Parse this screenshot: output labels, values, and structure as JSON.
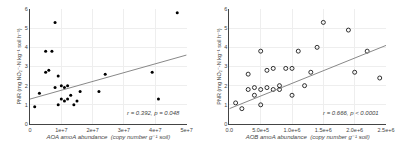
{
  "chart_data": [
    {
      "type": "scatter",
      "xlabel": "AOA amoA abundance  (copy number g⁻¹ soil)",
      "ylabel": "PNR (mg NO₂⁻-N kg⁻¹ soil h⁻¹)",
      "annotation": "r = 0.392, p = 0.048",
      "xlim": [
        0,
        50000000.0
      ],
      "ylim": [
        0,
        6
      ],
      "xticks": [
        0,
        {
          "value": 10000000.0,
          "label": "1e+7"
        },
        {
          "value": 20000000.0,
          "label": "2e+7"
        },
        {
          "value": 30000000.0,
          "label": "3e+7"
        },
        {
          "value": 40000000.0,
          "label": "4e+7"
        },
        {
          "value": 50000000.0,
          "label": "5e+7"
        }
      ],
      "yticks": [
        0,
        1,
        2,
        3,
        4,
        5,
        6
      ],
      "series": [
        {
          "type": "scatter",
          "color": "#000000",
          "marker": "filled",
          "x": [
            1500000.0,
            3000000.0,
            5000000.0,
            5000000.0,
            6000000.0,
            7000000.0,
            8000000.0,
            8000000.0,
            9000000.0,
            9000000.0,
            10000000.0,
            10000000.0,
            11000000.0,
            11000000.0,
            12000000.0,
            12000000.0,
            13000000.0,
            14000000.0,
            15000000.0,
            16000000.0,
            22000000.0,
            24000000.0,
            39000000.0,
            41000000.0,
            47000000.0
          ],
          "values": [
            0.9,
            1.6,
            2.7,
            3.8,
            2.8,
            3.8,
            5.3,
            1.9,
            2.5,
            1.0,
            2.0,
            1.3,
            1.9,
            1.2,
            2.0,
            1.3,
            1.5,
            1.0,
            1.2,
            1.7,
            1.7,
            2.6,
            2.7,
            1.3,
            5.8
          ]
        },
        {
          "type": "line",
          "color": "#888888",
          "x": [
            0,
            50000000.0
          ],
          "values": [
            1.3,
            3.6
          ]
        }
      ]
    },
    {
      "type": "scatter",
      "xlabel": "AOB amoA abundance  (copy number g⁻¹ soil)",
      "ylabel": "PNR (mg NO₂⁻-N kg⁻¹ soil h⁻¹)",
      "annotation": "r = 0.666, p < 0.0001",
      "xlim": [
        0,
        2500000.0
      ],
      "ylim": [
        0,
        6
      ],
      "xticks": [
        {
          "value": 0,
          "label": "0.0"
        },
        {
          "value": 500000.0,
          "label": "5.0e+5"
        },
        {
          "value": 1000000.0,
          "label": "1.0e+6"
        },
        {
          "value": 1500000.0,
          "label": "1.5e+6"
        },
        {
          "value": 2000000.0,
          "label": "2.0e+6"
        },
        {
          "value": 2500000.0,
          "label": "2.5e+6"
        }
      ],
      "yticks": [
        0,
        1,
        2,
        3,
        4,
        5,
        6
      ],
      "series": [
        {
          "type": "scatter",
          "color": "#000000",
          "marker": "open",
          "x": [
            100000.0,
            200000.0,
            300000.0,
            300000.0,
            400000.0,
            400000.0,
            500000.0,
            500000.0,
            500000.0,
            600000.0,
            600000.0,
            700000.0,
            700000.0,
            800000.0,
            800000.0,
            900000.0,
            1000000.0,
            1000000.0,
            1100000.0,
            1200000.0,
            1300000.0,
            1400000.0,
            1500000.0,
            1900000.0,
            2000000.0,
            2200000.0,
            2400000.0
          ],
          "values": [
            1.1,
            0.8,
            1.8,
            2.6,
            1.9,
            1.5,
            3.8,
            1.0,
            1.8,
            1.9,
            2.8,
            1.8,
            2.9,
            1.8,
            2.0,
            2.9,
            2.9,
            1.5,
            3.8,
            2.0,
            2.7,
            4.0,
            5.3,
            4.9,
            2.7,
            3.8,
            2.4
          ]
        },
        {
          "type": "line",
          "color": "#888888",
          "x": [
            0,
            2500000.0
          ],
          "values": [
            0.8,
            4.1
          ]
        }
      ]
    }
  ]
}
